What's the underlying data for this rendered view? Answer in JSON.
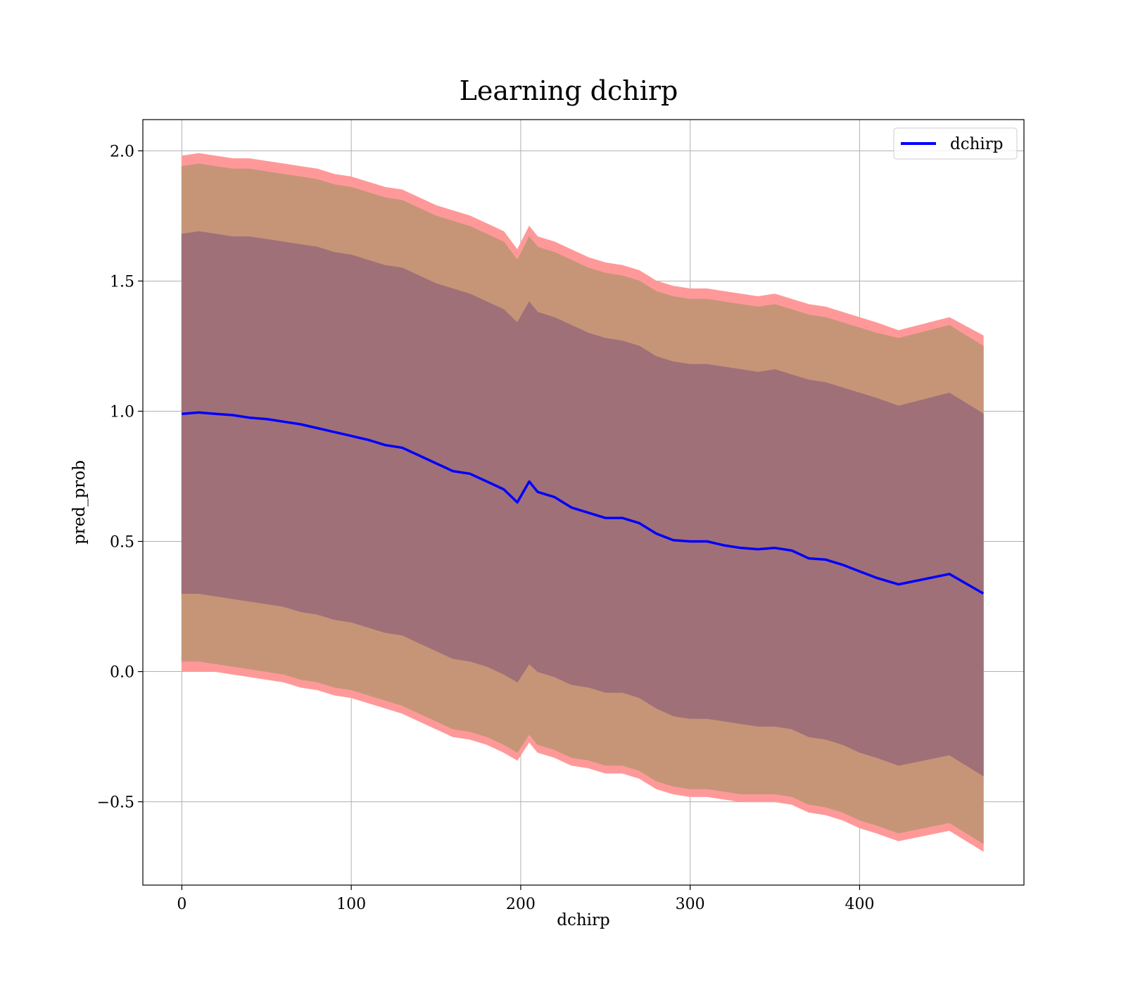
{
  "chart_data": {
    "type": "area",
    "title": "Learning dchirp",
    "xlabel": "dchirp",
    "ylabel": "pred_prob",
    "xlim": [
      -23,
      497
    ],
    "ylim": [
      -0.82,
      2.12
    ],
    "xticks": [
      0,
      100,
      200,
      300,
      400
    ],
    "yticks": [
      -0.5,
      0.0,
      0.5,
      1.0,
      1.5,
      2.0
    ],
    "xtick_labels": [
      "0",
      "100",
      "200",
      "300",
      "400"
    ],
    "ytick_labels": [
      "−0.5",
      "0.0",
      "0.5",
      "1.0",
      "1.5",
      "2.0"
    ],
    "grid": true,
    "legend": {
      "position": "top-right",
      "entries": [
        "dchirp"
      ]
    },
    "colors": {
      "line": "#0000ff",
      "band_outer": "#ff9999",
      "band_middle": "#c69578",
      "band_inner": "#a07079",
      "grid": "#b0b0b0"
    },
    "x": [
      0,
      10,
      20,
      30,
      40,
      50,
      60,
      70,
      80,
      90,
      100,
      110,
      120,
      130,
      140,
      150,
      160,
      170,
      180,
      190,
      198,
      205,
      210,
      220,
      230,
      240,
      250,
      260,
      270,
      280,
      290,
      300,
      310,
      320,
      330,
      340,
      350,
      360,
      370,
      380,
      390,
      400,
      410,
      423,
      453,
      473
    ],
    "series": [
      {
        "name": "dchirp",
        "values": [
          0.99,
          0.995,
          0.99,
          0.985,
          0.975,
          0.97,
          0.96,
          0.95,
          0.935,
          0.92,
          0.905,
          0.89,
          0.87,
          0.86,
          0.83,
          0.8,
          0.77,
          0.76,
          0.73,
          0.7,
          0.65,
          0.73,
          0.69,
          0.67,
          0.63,
          0.61,
          0.59,
          0.59,
          0.57,
          0.53,
          0.505,
          0.5,
          0.5,
          0.485,
          0.475,
          0.47,
          0.475,
          0.465,
          0.435,
          0.43,
          0.41,
          0.385,
          0.36,
          0.335,
          0.375,
          0.3
        ]
      }
    ],
    "bands": [
      {
        "lower": [
          0.0,
          0.0,
          0.0,
          -0.01,
          -0.02,
          -0.03,
          -0.04,
          -0.06,
          -0.07,
          -0.09,
          -0.1,
          -0.12,
          -0.14,
          -0.16,
          -0.19,
          -0.22,
          -0.25,
          -0.26,
          -0.28,
          -0.31,
          -0.34,
          -0.27,
          -0.31,
          -0.33,
          -0.36,
          -0.37,
          -0.39,
          -0.39,
          -0.41,
          -0.45,
          -0.47,
          -0.48,
          -0.48,
          -0.49,
          -0.5,
          -0.5,
          -0.5,
          -0.51,
          -0.54,
          -0.55,
          -0.57,
          -0.6,
          -0.62,
          -0.65,
          -0.61,
          -0.69
        ],
        "upper": [
          1.98,
          1.99,
          1.98,
          1.97,
          1.97,
          1.96,
          1.95,
          1.94,
          1.93,
          1.91,
          1.9,
          1.88,
          1.86,
          1.85,
          1.82,
          1.79,
          1.77,
          1.75,
          1.72,
          1.69,
          1.62,
          1.71,
          1.67,
          1.65,
          1.62,
          1.59,
          1.57,
          1.56,
          1.54,
          1.5,
          1.48,
          1.47,
          1.47,
          1.46,
          1.45,
          1.44,
          1.45,
          1.43,
          1.41,
          1.4,
          1.38,
          1.36,
          1.34,
          1.31,
          1.36,
          1.29
        ]
      },
      {
        "lower": [
          0.04,
          0.04,
          0.03,
          0.02,
          0.01,
          0.0,
          -0.01,
          -0.03,
          -0.04,
          -0.06,
          -0.07,
          -0.09,
          -0.11,
          -0.13,
          -0.16,
          -0.19,
          -0.22,
          -0.23,
          -0.25,
          -0.28,
          -0.31,
          -0.24,
          -0.28,
          -0.3,
          -0.33,
          -0.34,
          -0.36,
          -0.36,
          -0.38,
          -0.42,
          -0.44,
          -0.45,
          -0.45,
          -0.46,
          -0.47,
          -0.47,
          -0.47,
          -0.48,
          -0.51,
          -0.52,
          -0.54,
          -0.57,
          -0.59,
          -0.62,
          -0.58,
          -0.66
        ],
        "upper": [
          1.94,
          1.95,
          1.94,
          1.93,
          1.93,
          1.92,
          1.91,
          1.9,
          1.89,
          1.87,
          1.86,
          1.84,
          1.82,
          1.81,
          1.78,
          1.75,
          1.73,
          1.71,
          1.68,
          1.65,
          1.58,
          1.67,
          1.63,
          1.61,
          1.58,
          1.55,
          1.53,
          1.52,
          1.5,
          1.46,
          1.44,
          1.43,
          1.43,
          1.42,
          1.41,
          1.4,
          1.41,
          1.39,
          1.37,
          1.36,
          1.34,
          1.32,
          1.3,
          1.28,
          1.33,
          1.25
        ]
      },
      {
        "lower": [
          0.3,
          0.3,
          0.29,
          0.28,
          0.27,
          0.26,
          0.25,
          0.23,
          0.22,
          0.2,
          0.19,
          0.17,
          0.15,
          0.14,
          0.11,
          0.08,
          0.05,
          0.04,
          0.02,
          -0.01,
          -0.04,
          0.03,
          0.0,
          -0.02,
          -0.05,
          -0.06,
          -0.08,
          -0.08,
          -0.1,
          -0.14,
          -0.17,
          -0.18,
          -0.18,
          -0.19,
          -0.2,
          -0.21,
          -0.21,
          -0.22,
          -0.25,
          -0.26,
          -0.28,
          -0.31,
          -0.33,
          -0.36,
          -0.32,
          -0.4
        ],
        "upper": [
          1.68,
          1.69,
          1.68,
          1.67,
          1.67,
          1.66,
          1.65,
          1.64,
          1.63,
          1.61,
          1.6,
          1.58,
          1.56,
          1.55,
          1.52,
          1.49,
          1.47,
          1.45,
          1.42,
          1.39,
          1.34,
          1.42,
          1.38,
          1.36,
          1.33,
          1.3,
          1.28,
          1.27,
          1.25,
          1.21,
          1.19,
          1.18,
          1.18,
          1.17,
          1.16,
          1.15,
          1.16,
          1.14,
          1.12,
          1.11,
          1.09,
          1.07,
          1.05,
          1.02,
          1.07,
          0.99
        ]
      }
    ]
  }
}
